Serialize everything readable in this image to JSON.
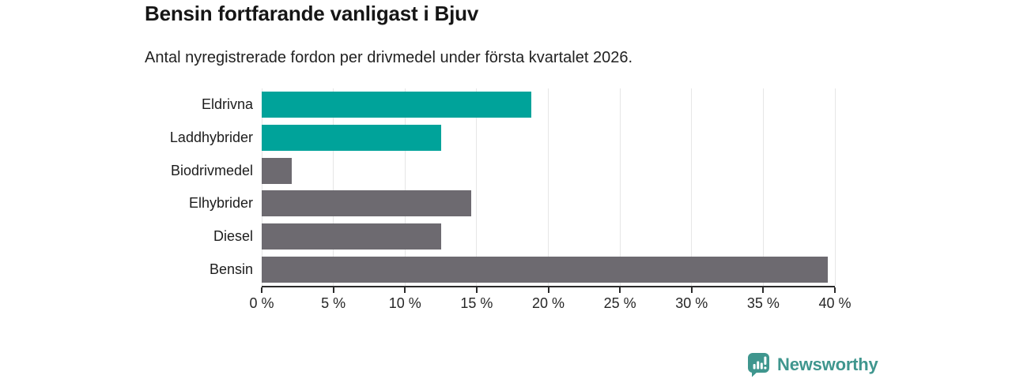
{
  "title": "Bensin fortfarande vanligast i Bjuv",
  "subtitle": "Antal nyregistrerade fordon per drivmedel under första kvartalet 2026.",
  "chart_data": {
    "type": "bar",
    "orientation": "horizontal",
    "title": "Bensin fortfarande vanligast i Bjuv",
    "subtitle": "Antal nyregistrerade fordon per drivmedel under första kvartalet 2026.",
    "categories": [
      "Eldrivna",
      "Laddhybrider",
      "Biodrivmedel",
      "Elhybrider",
      "Diesel",
      "Bensin"
    ],
    "values": [
      18.8,
      12.5,
      2.1,
      14.6,
      12.5,
      39.5
    ],
    "unit": "%",
    "bar_colors": [
      "#00a39a",
      "#00a39a",
      "#6d6a70",
      "#6d6a70",
      "#6d6a70",
      "#6d6a70"
    ],
    "accent_color": "#00a39a",
    "neutral_color": "#6d6a70",
    "xlim": [
      0,
      40
    ],
    "x_ticks": [
      0,
      5,
      10,
      15,
      20,
      25,
      30,
      35,
      40
    ],
    "x_tick_labels": [
      "0 %",
      "5 %",
      "10 %",
      "15 %",
      "20 %",
      "25 %",
      "30 %",
      "35 %",
      "40 %"
    ],
    "grid": "vertical",
    "legend": "none"
  },
  "branding": {
    "logo_text": "Newsworthy",
    "logo_color": "#3f968e",
    "logo_icon": "bar-chart-speech-bubble"
  }
}
